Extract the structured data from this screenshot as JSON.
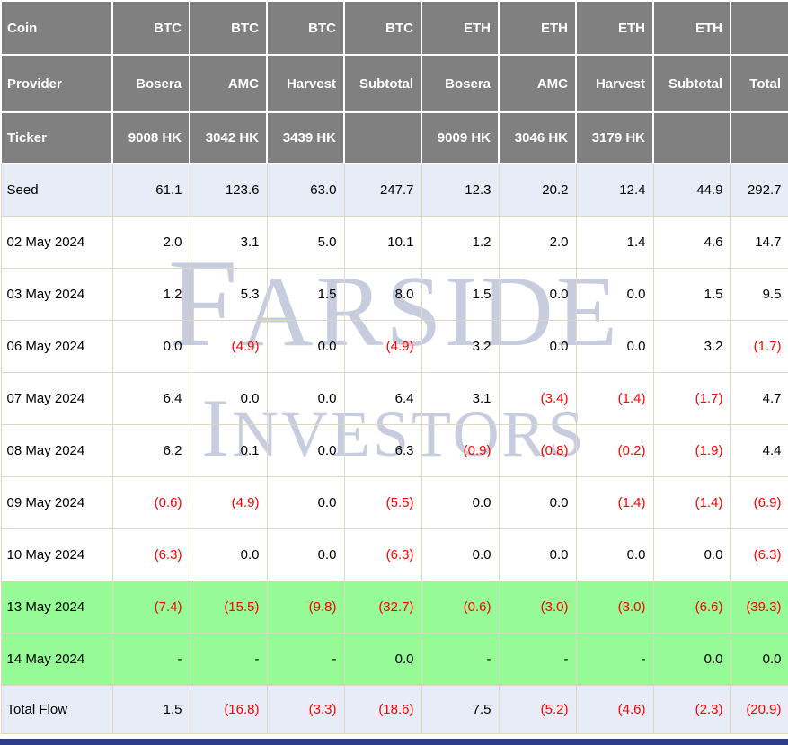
{
  "watermark": {
    "line1": "FARSIDE",
    "line2": "INVESTORS"
  },
  "palette": {
    "header_bg": "#808080",
    "header_text": "#ffffff",
    "accent_row_bg": "#e8ecf7",
    "green_row_bg": "#96fa96",
    "negative_text": "#ff0000",
    "positive_text": "#000000",
    "grid_border": "#ddd7c4",
    "watermark_text": "#c7cdde",
    "bottom_bar": "#2e3d8a"
  },
  "table": {
    "header_rows": [
      {
        "label": "Coin",
        "cells": [
          "BTC",
          "BTC",
          "BTC",
          "BTC",
          "ETH",
          "ETH",
          "ETH",
          "ETH",
          ""
        ]
      },
      {
        "label": "Provider",
        "cells": [
          "Bosera",
          "AMC",
          "Harvest",
          "Subtotal",
          "Bosera",
          "AMC",
          "Harvest",
          "Subtotal",
          "Total"
        ]
      },
      {
        "label": "Ticker",
        "cells": [
          "9008 HK",
          "3042 HK",
          "3439 HK",
          "",
          "9009 HK",
          "3046 HK",
          "3179 HK",
          "",
          ""
        ]
      }
    ],
    "rows": [
      {
        "label": "Seed",
        "style": "seed",
        "cells": [
          "61.1",
          "123.6",
          "63.0",
          "247.7",
          "12.3",
          "20.2",
          "12.4",
          "44.9",
          "292.7"
        ]
      },
      {
        "label": "02 May 2024",
        "style": "plain",
        "cells": [
          "2.0",
          "3.1",
          "5.0",
          "10.1",
          "1.2",
          "2.0",
          "1.4",
          "4.6",
          "14.7"
        ]
      },
      {
        "label": "03 May 2024",
        "style": "plain",
        "cells": [
          "1.2",
          "5.3",
          "1.5",
          "8.0",
          "1.5",
          "0.0",
          "0.0",
          "1.5",
          "9.5"
        ]
      },
      {
        "label": "06 May 2024",
        "style": "plain",
        "cells": [
          "0.0",
          "(4.9)",
          "0.0",
          "(4.9)",
          "3.2",
          "0.0",
          "0.0",
          "3.2",
          "(1.7)"
        ]
      },
      {
        "label": "07 May 2024",
        "style": "plain",
        "cells": [
          "6.4",
          "0.0",
          "0.0",
          "6.4",
          "3.1",
          "(3.4)",
          "(1.4)",
          "(1.7)",
          "4.7"
        ]
      },
      {
        "label": "08 May 2024",
        "style": "plain",
        "cells": [
          "6.2",
          "0.1",
          "0.0",
          "6.3",
          "(0.9)",
          "(0.8)",
          "(0.2)",
          "(1.9)",
          "4.4"
        ]
      },
      {
        "label": "09 May 2024",
        "style": "plain",
        "cells": [
          "(0.6)",
          "(4.9)",
          "0.0",
          "(5.5)",
          "0.0",
          "0.0",
          "(1.4)",
          "(1.4)",
          "(6.9)"
        ]
      },
      {
        "label": "10 May 2024",
        "style": "plain",
        "cells": [
          "(6.3)",
          "0.0",
          "0.0",
          "(6.3)",
          "0.0",
          "0.0",
          "0.0",
          "0.0",
          "(6.3)"
        ]
      },
      {
        "label": "13 May 2024",
        "style": "green",
        "cells": [
          "(7.4)",
          "(15.5)",
          "(9.8)",
          "(32.7)",
          "(0.6)",
          "(3.0)",
          "(3.0)",
          "(6.6)",
          "(39.3)"
        ]
      },
      {
        "label": "14 May 2024",
        "style": "green",
        "cells": [
          "-",
          "-",
          "-",
          "0.0",
          "-",
          "-",
          "-",
          "0.0",
          "0.0"
        ]
      },
      {
        "label": "Total Flow",
        "style": "total",
        "cells": [
          "1.5",
          "(16.8)",
          "(3.3)",
          "(18.6)",
          "7.5",
          "(5.2)",
          "(4.6)",
          "(2.3)",
          "(20.9)"
        ]
      }
    ]
  },
  "chart_data": {
    "type": "table",
    "columns": [
      {
        "coin": "BTC",
        "provider": "Bosera",
        "ticker": "9008 HK"
      },
      {
        "coin": "BTC",
        "provider": "AMC",
        "ticker": "3042 HK"
      },
      {
        "coin": "BTC",
        "provider": "Harvest",
        "ticker": "3439 HK"
      },
      {
        "coin": "BTC",
        "provider": "Subtotal",
        "ticker": ""
      },
      {
        "coin": "ETH",
        "provider": "Bosera",
        "ticker": "9009 HK"
      },
      {
        "coin": "ETH",
        "provider": "AMC",
        "ticker": "3046 HK"
      },
      {
        "coin": "ETH",
        "provider": "Harvest",
        "ticker": "3179 HK"
      },
      {
        "coin": "ETH",
        "provider": "Subtotal",
        "ticker": ""
      },
      {
        "coin": "",
        "provider": "Total",
        "ticker": ""
      }
    ],
    "row_labels": [
      "Seed",
      "02 May 2024",
      "03 May 2024",
      "06 May 2024",
      "07 May 2024",
      "08 May 2024",
      "09 May 2024",
      "10 May 2024",
      "13 May 2024",
      "14 May 2024",
      "Total Flow"
    ],
    "values": [
      [
        61.1,
        123.6,
        63.0,
        247.7,
        12.3,
        20.2,
        12.4,
        44.9,
        292.7
      ],
      [
        2.0,
        3.1,
        5.0,
        10.1,
        1.2,
        2.0,
        1.4,
        4.6,
        14.7
      ],
      [
        1.2,
        5.3,
        1.5,
        8.0,
        1.5,
        0.0,
        0.0,
        1.5,
        9.5
      ],
      [
        0.0,
        -4.9,
        0.0,
        -4.9,
        3.2,
        0.0,
        0.0,
        3.2,
        -1.7
      ],
      [
        6.4,
        0.0,
        0.0,
        6.4,
        3.1,
        -3.4,
        -1.4,
        -1.7,
        4.7
      ],
      [
        6.2,
        0.1,
        0.0,
        6.3,
        -0.9,
        -0.8,
        -0.2,
        -1.9,
        4.4
      ],
      [
        -0.6,
        -4.9,
        0.0,
        -5.5,
        0.0,
        0.0,
        -1.4,
        -1.4,
        -6.9
      ],
      [
        -6.3,
        0.0,
        0.0,
        -6.3,
        0.0,
        0.0,
        0.0,
        0.0,
        -6.3
      ],
      [
        -7.4,
        -15.5,
        -9.8,
        -32.7,
        -0.6,
        -3.0,
        -3.0,
        -6.6,
        -39.3
      ],
      [
        null,
        null,
        null,
        0.0,
        null,
        null,
        null,
        0.0,
        0.0
      ],
      [
        1.5,
        -16.8,
        -3.3,
        -18.6,
        7.5,
        -5.2,
        -4.6,
        -2.3,
        -20.9
      ]
    ],
    "highlighted_rows": [
      "13 May 2024",
      "14 May 2024"
    ],
    "notes": "negative values shown in parentheses and red; '-' means no data"
  }
}
